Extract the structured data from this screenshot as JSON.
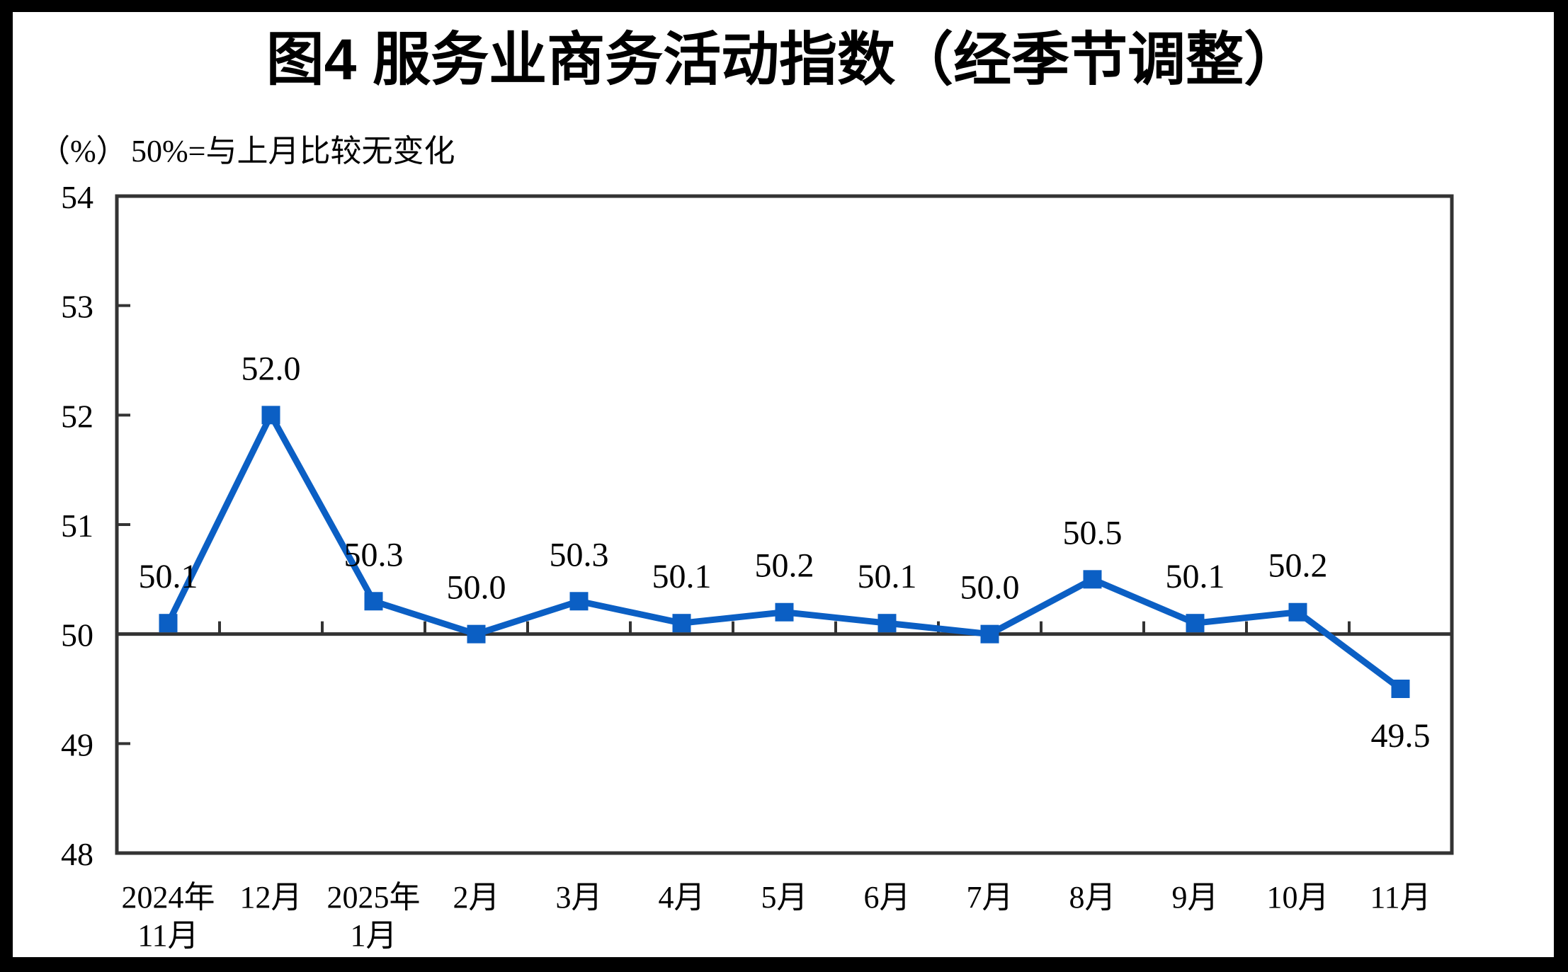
{
  "chart_data": {
    "type": "line",
    "title": "图4  服务业商务活动指数（经季节调整）",
    "unit_label": "（%）",
    "note": "50%=与上月比较无变化",
    "xlabel": "",
    "ylabel": "%",
    "categories": [
      "2024年11月",
      "12月",
      "2025年1月",
      "2月",
      "3月",
      "4月",
      "5月",
      "6月",
      "7月",
      "8月",
      "9月",
      "10月",
      "11月"
    ],
    "category_lines": [
      [
        "2024年",
        "11月"
      ],
      [
        "12月"
      ],
      [
        "2025年",
        "1月"
      ],
      [
        "2月"
      ],
      [
        "3月"
      ],
      [
        "4月"
      ],
      [
        "5月"
      ],
      [
        "6月"
      ],
      [
        "7月"
      ],
      [
        "8月"
      ],
      [
        "9月"
      ],
      [
        "10月"
      ],
      [
        "11月"
      ]
    ],
    "series": [
      {
        "name": "服务业商务活动指数",
        "values": [
          50.1,
          52.0,
          50.3,
          50.0,
          50.3,
          50.1,
          50.2,
          50.1,
          50.0,
          50.5,
          50.1,
          50.2,
          49.5
        ],
        "value_labels": [
          "50.1",
          "52.0",
          "50.3",
          "50.0",
          "50.3",
          "50.1",
          "50.2",
          "50.1",
          "50.0",
          "50.5",
          "50.1",
          "50.2",
          "49.5"
        ]
      }
    ],
    "ylim": [
      48,
      54
    ],
    "yticks": [
      48,
      49,
      50,
      51,
      52,
      53,
      54
    ],
    "reference_value": 50,
    "grid": "off",
    "legend_position": "none",
    "colors": {
      "series": "#0B5FC4",
      "axis": "#333333",
      "text": "#000000",
      "background": "#ffffff",
      "frame": "#000000"
    }
  }
}
